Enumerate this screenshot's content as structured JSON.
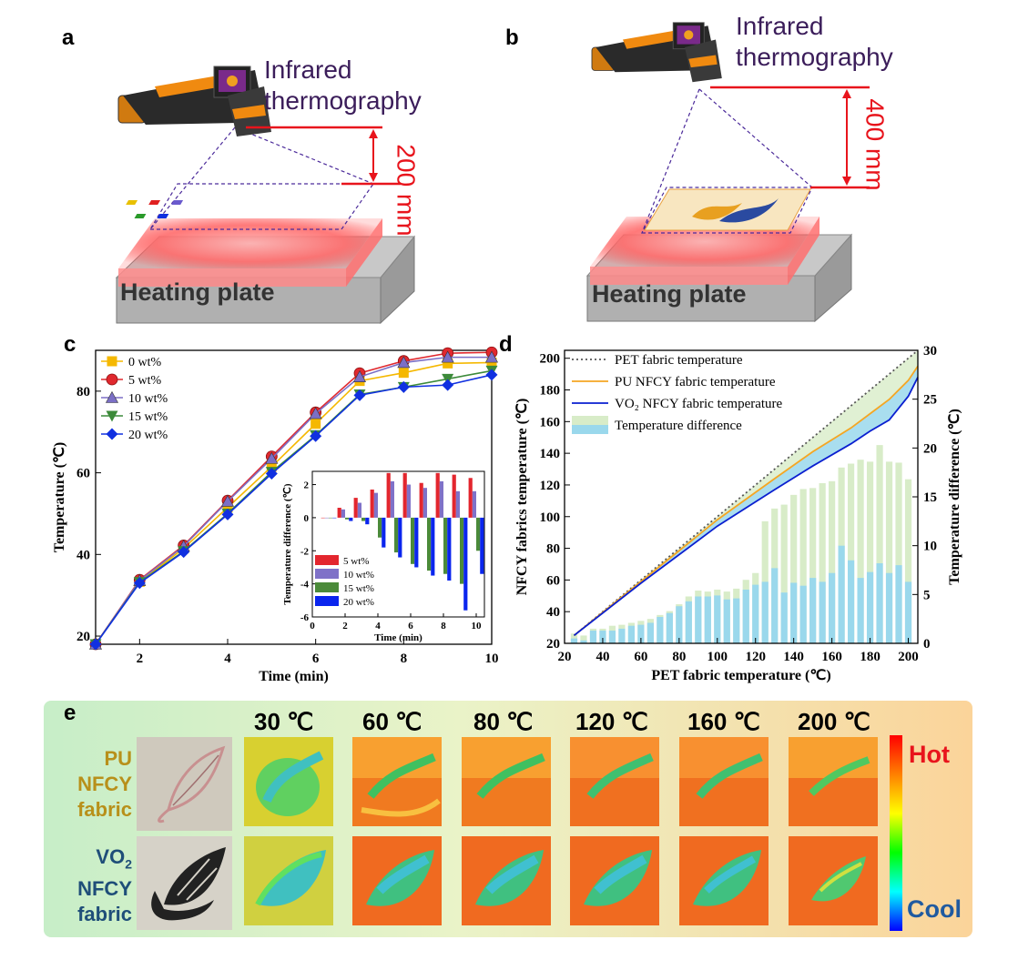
{
  "panels": {
    "a": {
      "label": "a",
      "camera_label_line1": "Infrared",
      "camera_label_line2": "thermography",
      "distance": "200 mm",
      "plate_label": "Heating plate"
    },
    "b": {
      "label": "b",
      "camera_label_line1": "Infrared",
      "camera_label_line2": "thermography",
      "distance": "400 mm",
      "plate_label": "Heating plate"
    },
    "c": {
      "label": "c"
    },
    "d": {
      "label": "d"
    },
    "e": {
      "label": "e",
      "temps": [
        "30 ℃",
        "60 ℃",
        "80 ℃",
        "120 ℃",
        "160 ℃",
        "200 ℃"
      ],
      "row1": {
        "line1": "PU",
        "line2": "NFCY",
        "line3": "fabric"
      },
      "row2": {
        "line1": "VO",
        "sub": "2",
        "line2": "NFCY",
        "line3": "fabric"
      },
      "scale_hot": "Hot",
      "scale_cool": "Cool"
    }
  },
  "colors": {
    "purple": "#3b1d5a",
    "red": "#e8141c",
    "pu_gold": "#b8901a",
    "vo2_blue": "#1f4e79"
  },
  "chart_data": [
    {
      "type": "line",
      "panel": "c",
      "xlabel": "Time (min)",
      "ylabel": "Temperature (℃)",
      "xlim": [
        1,
        10
      ],
      "ylim": [
        18,
        90
      ],
      "xticks": [
        2,
        4,
        6,
        8,
        10
      ],
      "yticks": [
        20,
        40,
        60,
        80
      ],
      "x": [
        1,
        2,
        3,
        4,
        5,
        6,
        7,
        8,
        9,
        10
      ],
      "series": [
        {
          "name": "0 wt%",
          "color": "#f5b800",
          "marker": "square",
          "values": [
            18,
            33.3,
            41.5,
            51.5,
            61.5,
            72,
            82.5,
            84.5,
            86.8,
            87
          ]
        },
        {
          "name": "5 wt%",
          "color": "#e0282e",
          "marker": "circle",
          "values": [
            18,
            33.8,
            42.2,
            53.2,
            64,
            74.8,
            84.4,
            87.4,
            89.3,
            89.5
          ]
        },
        {
          "name": "10 wt%",
          "color": "#7b6fc6",
          "marker": "triangle-up",
          "values": [
            18,
            33.6,
            42,
            53,
            63.5,
            74.5,
            83.5,
            87,
            88.3,
            88.3
          ]
        },
        {
          "name": "15 wt%",
          "color": "#3c8a3a",
          "marker": "triangle-down",
          "values": [
            18,
            33.2,
            40.8,
            50,
            60.2,
            69.2,
            79.2,
            81,
            83,
            85
          ]
        },
        {
          "name": "20 wt%",
          "color": "#1030e0",
          "marker": "diamond",
          "values": [
            18,
            33,
            40.6,
            49.8,
            59.8,
            69,
            79,
            81,
            81.5,
            84
          ]
        }
      ]
    },
    {
      "type": "bar",
      "panel": "c-inset",
      "xlabel": "Time (min)",
      "ylabel": "Temperature difference (℃)",
      "xlim": [
        0,
        10.5
      ],
      "ylim": [
        -6,
        2.8
      ],
      "xticks": [
        0,
        2,
        4,
        6,
        8,
        10
      ],
      "yticks": [
        -6,
        -4,
        -2,
        0,
        2
      ],
      "categories": [
        1,
        2,
        3,
        4,
        5,
        6,
        7,
        8,
        9,
        10
      ],
      "series": [
        {
          "name": "5 wt%",
          "color": "#e3262e",
          "values": [
            0,
            0.6,
            1.2,
            1.7,
            2.7,
            2.7,
            2.1,
            2.7,
            2.6,
            2.4
          ]
        },
        {
          "name": "10 wt%",
          "color": "#7f72c8",
          "values": [
            0,
            0.5,
            0.9,
            1.5,
            2.2,
            2,
            1.8,
            2.2,
            1.6,
            1.6
          ]
        },
        {
          "name": "15 wt%",
          "color": "#4b8a3a",
          "values": [
            0,
            -0.1,
            -0.2,
            -1.2,
            -2.1,
            -2.8,
            -3.2,
            -3.4,
            -4,
            -2
          ]
        },
        {
          "name": "20 wt%",
          "color": "#0a25ee",
          "values": [
            0,
            -0.2,
            -0.4,
            -1.8,
            -2.4,
            -3,
            -3.5,
            -3.8,
            -5.6,
            -3.4
          ]
        }
      ]
    },
    {
      "type": "line",
      "panel": "d",
      "xlabel": "PET fabric temperature (℃)",
      "ylabel": "NFCY fabrics temperature (℃)",
      "y2label": "Temperature difference (℃)",
      "xlim": [
        20,
        205
      ],
      "ylim": [
        20,
        205
      ],
      "y2lim": [
        0,
        30
      ],
      "xticks": [
        20,
        40,
        60,
        80,
        100,
        120,
        140,
        160,
        180,
        200
      ],
      "yticks": [
        20,
        40,
        60,
        80,
        100,
        120,
        140,
        160,
        180,
        200
      ],
      "y2ticks": [
        0,
        5,
        10,
        15,
        20,
        25,
        30
      ],
      "x": [
        25,
        60,
        100,
        130,
        150,
        170,
        180,
        190,
        200,
        205
      ],
      "series": [
        {
          "name": "PET fabric temperature",
          "color": "#555555",
          "style": "dotted",
          "values": [
            25,
            60,
            100,
            130,
            150,
            170,
            180,
            190,
            200,
            205
          ]
        },
        {
          "name": "PU NFCY fabric temperature",
          "color": "#f5a623",
          "values": [
            25,
            59,
            98,
            124,
            141,
            156,
            165,
            174,
            186,
            195
          ]
        },
        {
          "name": "VO₂ NFCY fabric temperature",
          "color": "#0a1fd0",
          "values": [
            25,
            58,
            94,
            117,
            132,
            146,
            154,
            161,
            176,
            188
          ]
        }
      ],
      "bars": {
        "name": "Temperature difference",
        "x": [
          25,
          30,
          35,
          40,
          45,
          50,
          55,
          60,
          65,
          70,
          75,
          80,
          85,
          90,
          95,
          100,
          105,
          110,
          115,
          120,
          125,
          130,
          135,
          140,
          145,
          150,
          155,
          160,
          165,
          170,
          175,
          180,
          185,
          190,
          195,
          200
        ],
        "vo2_values": [
          0.5,
          0.3,
          1.3,
          1.3,
          1.3,
          1.5,
          1.8,
          1.9,
          2.1,
          2.7,
          3.1,
          3.8,
          4.3,
          4.8,
          4.8,
          4.9,
          4.5,
          4.6,
          5.5,
          6,
          6.3,
          7.7,
          5.2,
          6.2,
          5.9,
          6.7,
          6.3,
          7.2,
          10,
          8.5,
          6.7,
          7.3,
          8.2,
          7.2,
          8,
          6.3
        ],
        "pu_values": [
          1,
          0.8,
          1.5,
          1.5,
          1.8,
          1.9,
          2.1,
          2.3,
          2.5,
          2.9,
          3.3,
          4,
          4.8,
          5.4,
          5.3,
          5.5,
          5.3,
          5.6,
          6.5,
          7.2,
          12.5,
          13.8,
          14.2,
          15.2,
          15.8,
          15.9,
          16.4,
          16.6,
          18,
          18.4,
          18.8,
          18.6,
          20.3,
          18.6,
          18.5,
          16.8
        ]
      }
    }
  ]
}
